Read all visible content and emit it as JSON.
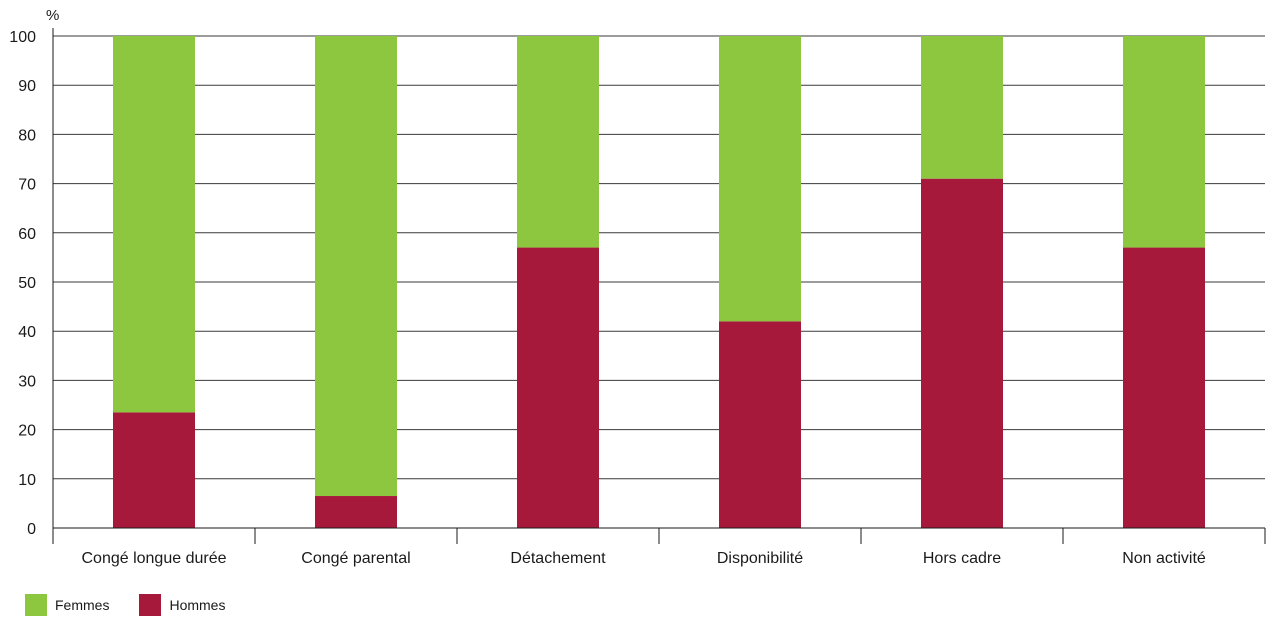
{
  "chart_data": {
    "type": "bar",
    "stacked": true,
    "ylabel": "%",
    "ylim": [
      0,
      100
    ],
    "yticks": [
      0,
      10,
      20,
      30,
      40,
      50,
      60,
      70,
      80,
      90,
      100
    ],
    "grid": true,
    "legend_position": "bottom-left",
    "categories": [
      "Congé longue durée",
      "Congé parental",
      "Détachement",
      "Disponibilité",
      "Hors cadre",
      "Non activité"
    ],
    "series": [
      {
        "name": "Hommes",
        "color": "#a6193b",
        "values": [
          23.5,
          6.5,
          57,
          42,
          71,
          57
        ]
      },
      {
        "name": "Femmes",
        "color": "#8dc63f",
        "values": [
          76.5,
          93.5,
          43,
          58,
          29,
          43
        ]
      }
    ]
  },
  "legend": {
    "femmes": {
      "label": "Femmes",
      "color": "#8dc63f"
    },
    "hommes": {
      "label": "Hommes",
      "color": "#a6193b"
    }
  }
}
